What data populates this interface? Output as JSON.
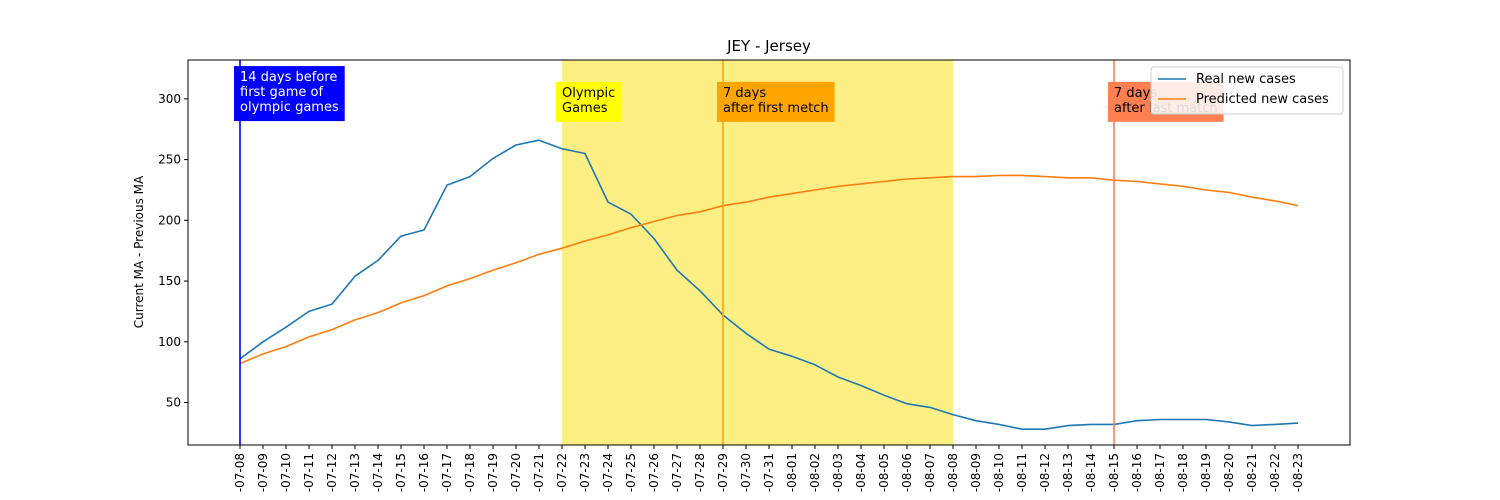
{
  "chart_data": {
    "type": "line",
    "title": "JEY - Jersey",
    "xlabel": "",
    "ylabel": "Current MA - Previous MA",
    "ylim": [
      15,
      332
    ],
    "yticks": [
      50,
      100,
      150,
      200,
      250,
      300
    ],
    "grid": false,
    "legend_position": "top-right",
    "categories": [
      "2021-07-08",
      "2021-07-09",
      "2021-07-10",
      "2021-07-11",
      "2021-07-12",
      "2021-07-13",
      "2021-07-14",
      "2021-07-15",
      "2021-07-16",
      "2021-07-17",
      "2021-07-18",
      "2021-07-19",
      "2021-07-20",
      "2021-07-21",
      "2021-07-22",
      "2021-07-23",
      "2021-07-24",
      "2021-07-25",
      "2021-07-26",
      "2021-07-27",
      "2021-07-28",
      "2021-07-29",
      "2021-07-30",
      "2021-07-31",
      "2021-08-01",
      "2021-08-02",
      "2021-08-03",
      "2021-08-04",
      "2021-08-05",
      "2021-08-06",
      "2021-08-07",
      "2021-08-08",
      "2021-08-09",
      "2021-08-10",
      "2021-08-11",
      "2021-08-12",
      "2021-08-13",
      "2021-08-14",
      "2021-08-15",
      "2021-08-16",
      "2021-08-17",
      "2021-08-18",
      "2021-08-19",
      "2021-08-20",
      "2021-08-21",
      "2021-08-22",
      "2021-08-23"
    ],
    "tick_labels": [
      "-07-08",
      "-07-09",
      "-07-10",
      "-07-11",
      "-07-12",
      "-07-13",
      "-07-14",
      "-07-15",
      "-07-16",
      "-07-17",
      "-07-18",
      "-07-19",
      "-07-20",
      "-07-21",
      "-07-22",
      "-07-23",
      "-07-24",
      "-07-25",
      "-07-26",
      "-07-27",
      "-07-28",
      "-07-29",
      "-07-30",
      "-07-31",
      "-08-01",
      "-08-02",
      "-08-03",
      "-08-04",
      "-08-05",
      "-08-06",
      "-08-07",
      "-08-08",
      "-08-09",
      "-08-10",
      "-08-11",
      "-08-12",
      "-08-13",
      "-08-14",
      "-08-15",
      "-08-16",
      "-08-17",
      "-08-18",
      "-08-19",
      "-08-20",
      "-08-21",
      "-08-22",
      "-08-23"
    ],
    "series": [
      {
        "name": "Real new cases",
        "color": "#1f77b4",
        "values": [
          86,
          100,
          112,
          125,
          131,
          154,
          167,
          187,
          192,
          229,
          236,
          251,
          262,
          266,
          259,
          255,
          215,
          205,
          185,
          159,
          142,
          122,
          107,
          94,
          88,
          81,
          71,
          64,
          56,
          49,
          46,
          40,
          35,
          32,
          28,
          28,
          31,
          32,
          32,
          35,
          36,
          36,
          36,
          34,
          31,
          32,
          33
        ]
      },
      {
        "name": "Predicted new cases",
        "color": "#ff7f0e",
        "values": [
          82,
          90,
          96,
          104,
          110,
          118,
          124,
          132,
          138,
          146,
          152,
          159,
          165,
          172,
          177,
          183,
          188,
          194,
          199,
          204,
          207,
          212,
          215,
          219,
          222,
          225,
          228,
          230,
          232,
          234,
          235,
          236,
          236,
          237,
          237,
          236,
          235,
          235,
          233,
          232,
          230,
          228,
          225,
          223,
          219,
          216,
          212
        ]
      }
    ],
    "shaded_region": {
      "from": "2021-07-22",
      "to": "2021-08-08",
      "color": "#fdef83"
    },
    "vertical_lines": [
      {
        "x": "2021-07-08",
        "color": "#0000ff"
      },
      {
        "x": "2021-07-29",
        "color": "#ffa500"
      },
      {
        "x": "2021-08-15",
        "color": "#ff7f50"
      }
    ],
    "annotations": [
      {
        "name": "annotation-before-games",
        "x": "2021-07-08",
        "lines": [
          "14 days before",
          "first game of",
          "olympic games"
        ],
        "bg": "#0000ff",
        "fg": "#ffffff",
        "y_top": 327
      },
      {
        "name": "annotation-olympic-games",
        "x": "2021-07-22",
        "lines": [
          "Olympic",
          "Games"
        ],
        "bg": "#ffff00",
        "fg": "#000000",
        "y_top": 314
      },
      {
        "name": "annotation-after-first-match",
        "x": "2021-07-29",
        "lines": [
          "7 days",
          "after first metch"
        ],
        "bg": "#ffa500",
        "fg": "#000000",
        "y_top": 314
      },
      {
        "name": "annotation-after-last-match",
        "x": "2021-08-15",
        "lines": [
          "7 days",
          "after last match"
        ],
        "bg": "#ff7f50",
        "fg": "#000000",
        "y_top": 314
      }
    ]
  }
}
